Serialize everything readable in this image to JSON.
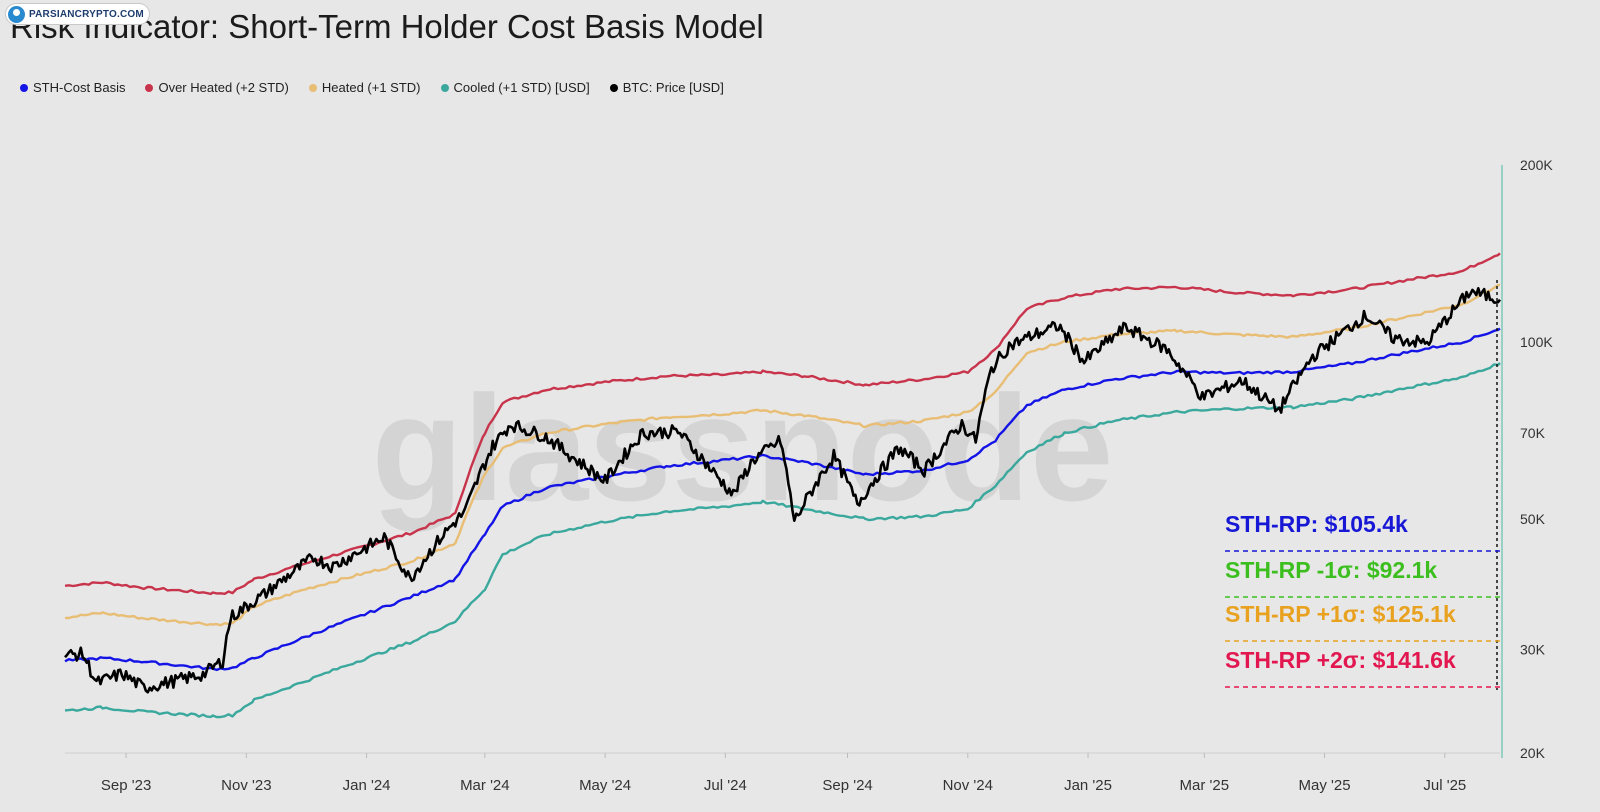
{
  "header": {
    "title": "Risk Indicator: Short-Term Holder Cost Basis Model",
    "brand": "PARSIANCRYPTO.COM",
    "watermark": "glassnode"
  },
  "colors": {
    "background": "#e7e7e7",
    "sth_cost_basis": "#1414e6",
    "over_heated": "#c8344b",
    "heated": "#e8bd74",
    "cooled": "#3aa89d",
    "price": "#000000",
    "label_blue": "#1717d6",
    "label_green": "#3cbf1e",
    "label_orange": "#e8a21f",
    "label_red": "#e3174f",
    "axis_line": "#7ec9ba"
  },
  "legend": [
    {
      "label": "STH-Cost Basis",
      "color": "#1414e6"
    },
    {
      "label": "Over Heated (+2 STD)",
      "color": "#c8344b"
    },
    {
      "label": "Heated (+1 STD)",
      "color": "#e8bd74"
    },
    {
      "label": "Cooled (+1 STD) [USD]",
      "color": "#3aa89d"
    },
    {
      "label": "BTC: Price [USD]",
      "color": "#000000"
    }
  ],
  "annotations": [
    {
      "text": "STH-RP: $105.4k",
      "color": "#1717d6"
    },
    {
      "text": "STH-RP -1σ: $92.1k",
      "color": "#3cbf1e"
    },
    {
      "text": "STH-RP +1σ: $125.1k",
      "color": "#e8a21f"
    },
    {
      "text": "STH-RP +2σ: $141.6k",
      "color": "#e3174f"
    }
  ],
  "chart_data": {
    "type": "line",
    "title": "Risk Indicator: Short-Term Holder Cost Basis Model",
    "y_scale": "log",
    "ylim": [
      20000,
      200000
    ],
    "y_ticks": [
      {
        "value": 200000,
        "label": "200K"
      },
      {
        "value": 100000,
        "label": "100K"
      },
      {
        "value": 70000,
        "label": "70K"
      },
      {
        "value": 50000,
        "label": "50K"
      },
      {
        "value": 30000,
        "label": "30K"
      },
      {
        "value": 20000,
        "label": "20K"
      }
    ],
    "xlim": [
      "2023-08-01",
      "2025-07-29"
    ],
    "x_ticks": [
      {
        "date": "2023-09-01",
        "label": "Sep '23"
      },
      {
        "date": "2023-11-01",
        "label": "Nov '23"
      },
      {
        "date": "2024-01-01",
        "label": "Jan '24"
      },
      {
        "date": "2024-03-01",
        "label": "Mar '24"
      },
      {
        "date": "2024-05-01",
        "label": "May '24"
      },
      {
        "date": "2024-07-01",
        "label": "Jul '24"
      },
      {
        "date": "2024-09-01",
        "label": "Sep '24"
      },
      {
        "date": "2024-11-01",
        "label": "Nov '24"
      },
      {
        "date": "2025-01-01",
        "label": "Jan '25"
      },
      {
        "date": "2025-03-01",
        "label": "Mar '25"
      },
      {
        "date": "2025-05-01",
        "label": "May '25"
      },
      {
        "date": "2025-07-01",
        "label": "Jul '25"
      }
    ],
    "legend_position": "top-left",
    "series": [
      {
        "name": "Over Heated (+2 STD)",
        "color": "#c8344b",
        "points": [
          [
            "2023-08-01",
            38500
          ],
          [
            "2023-08-20",
            39000
          ],
          [
            "2023-09-10",
            38200
          ],
          [
            "2023-10-15",
            37400
          ],
          [
            "2023-10-25",
            37500
          ],
          [
            "2023-11-05",
            39500
          ],
          [
            "2023-12-01",
            42000
          ],
          [
            "2024-01-01",
            45000
          ],
          [
            "2024-01-25",
            47500
          ],
          [
            "2024-02-15",
            51000
          ],
          [
            "2024-03-01",
            70000
          ],
          [
            "2024-03-10",
            79000
          ],
          [
            "2024-04-01",
            83000
          ],
          [
            "2024-05-01",
            85500
          ],
          [
            "2024-06-01",
            87500
          ],
          [
            "2024-07-01",
            88000
          ],
          [
            "2024-07-20",
            89000
          ],
          [
            "2024-08-10",
            87500
          ],
          [
            "2024-09-10",
            84500
          ],
          [
            "2024-10-10",
            86500
          ],
          [
            "2024-11-01",
            89000
          ],
          [
            "2024-11-15",
            97000
          ],
          [
            "2024-12-01",
            114000
          ],
          [
            "2024-12-20",
            119000
          ],
          [
            "2025-01-15",
            123000
          ],
          [
            "2025-02-15",
            124000
          ],
          [
            "2025-03-15",
            121500
          ],
          [
            "2025-04-15",
            120000
          ],
          [
            "2025-05-15",
            123000
          ],
          [
            "2025-06-15",
            128000
          ],
          [
            "2025-07-10",
            132000
          ],
          [
            "2025-07-29",
            141600
          ]
        ]
      },
      {
        "name": "Heated (+1 STD)",
        "color": "#e8bd74",
        "points": [
          [
            "2023-08-01",
            34000
          ],
          [
            "2023-08-20",
            34600
          ],
          [
            "2023-09-10",
            33900
          ],
          [
            "2023-10-15",
            33100
          ],
          [
            "2023-10-25",
            33200
          ],
          [
            "2023-11-05",
            35500
          ],
          [
            "2023-12-01",
            38000
          ],
          [
            "2024-01-01",
            40500
          ],
          [
            "2024-01-25",
            42500
          ],
          [
            "2024-02-15",
            45500
          ],
          [
            "2024-03-01",
            59500
          ],
          [
            "2024-03-10",
            66000
          ],
          [
            "2024-04-01",
            70000
          ],
          [
            "2024-05-01",
            72500
          ],
          [
            "2024-06-01",
            74500
          ],
          [
            "2024-07-01",
            75500
          ],
          [
            "2024-07-20",
            76500
          ],
          [
            "2024-08-10",
            75000
          ],
          [
            "2024-09-10",
            72000
          ],
          [
            "2024-10-10",
            73500
          ],
          [
            "2024-11-01",
            76000
          ],
          [
            "2024-11-15",
            82000
          ],
          [
            "2024-12-01",
            96000
          ],
          [
            "2024-12-20",
            100000
          ],
          [
            "2025-01-15",
            103000
          ],
          [
            "2025-02-15",
            104500
          ],
          [
            "2025-03-15",
            103000
          ],
          [
            "2025-04-15",
            102000
          ],
          [
            "2025-05-15",
            105500
          ],
          [
            "2025-06-15",
            111000
          ],
          [
            "2025-07-10",
            116000
          ],
          [
            "2025-07-29",
            125100
          ]
        ]
      },
      {
        "name": "STH-Cost Basis",
        "color": "#1414e6",
        "points": [
          [
            "2023-08-01",
            28700
          ],
          [
            "2023-08-20",
            29000
          ],
          [
            "2023-09-10",
            28600
          ],
          [
            "2023-10-15",
            27800
          ],
          [
            "2023-10-25",
            27900
          ],
          [
            "2023-11-05",
            29000
          ],
          [
            "2023-12-01",
            31500
          ],
          [
            "2024-01-01",
            34500
          ],
          [
            "2024-01-25",
            37000
          ],
          [
            "2024-02-15",
            39500
          ],
          [
            "2024-03-01",
            47000
          ],
          [
            "2024-03-10",
            52500
          ],
          [
            "2024-04-01",
            56500
          ],
          [
            "2024-05-01",
            59000
          ],
          [
            "2024-06-01",
            61500
          ],
          [
            "2024-07-01",
            63000
          ],
          [
            "2024-07-20",
            64000
          ],
          [
            "2024-08-10",
            62500
          ],
          [
            "2024-09-10",
            59500
          ],
          [
            "2024-10-10",
            60500
          ],
          [
            "2024-11-01",
            63000
          ],
          [
            "2024-11-15",
            68000
          ],
          [
            "2024-12-01",
            78000
          ],
          [
            "2024-12-20",
            83000
          ],
          [
            "2025-01-15",
            86500
          ],
          [
            "2025-02-15",
            89000
          ],
          [
            "2025-03-15",
            88500
          ],
          [
            "2025-04-15",
            89000
          ],
          [
            "2025-05-15",
            92000
          ],
          [
            "2025-06-15",
            96500
          ],
          [
            "2025-07-10",
            100000
          ],
          [
            "2025-07-29",
            105400
          ]
        ]
      },
      {
        "name": "Cooled (+1 STD) [USD]",
        "color": "#3aa89d",
        "points": [
          [
            "2023-08-01",
            23600
          ],
          [
            "2023-08-20",
            23900
          ],
          [
            "2023-09-10",
            23500
          ],
          [
            "2023-10-15",
            23100
          ],
          [
            "2023-10-25",
            23200
          ],
          [
            "2023-11-05",
            24600
          ],
          [
            "2023-12-01",
            26500
          ],
          [
            "2024-01-01",
            29000
          ],
          [
            "2024-01-25",
            31000
          ],
          [
            "2024-02-15",
            33500
          ],
          [
            "2024-03-01",
            38000
          ],
          [
            "2024-03-10",
            43500
          ],
          [
            "2024-04-01",
            47000
          ],
          [
            "2024-05-01",
            49500
          ],
          [
            "2024-06-01",
            51500
          ],
          [
            "2024-07-01",
            52500
          ],
          [
            "2024-07-20",
            53500
          ],
          [
            "2024-08-10",
            52000
          ],
          [
            "2024-09-10",
            50000
          ],
          [
            "2024-10-10",
            50500
          ],
          [
            "2024-11-01",
            52000
          ],
          [
            "2024-11-15",
            57000
          ],
          [
            "2024-12-01",
            65000
          ],
          [
            "2024-12-20",
            70000
          ],
          [
            "2025-01-15",
            73500
          ],
          [
            "2025-02-15",
            76000
          ],
          [
            "2025-03-15",
            77000
          ],
          [
            "2025-04-15",
            77500
          ],
          [
            "2025-05-15",
            80000
          ],
          [
            "2025-06-15",
            84000
          ],
          [
            "2025-07-10",
            87000
          ],
          [
            "2025-07-29",
            92100
          ]
        ]
      },
      {
        "name": "BTC: Price [USD]",
        "color": "#000000",
        "points": [
          [
            "2023-08-01",
            29300
          ],
          [
            "2023-08-10",
            29500
          ],
          [
            "2023-08-17",
            26300
          ],
          [
            "2023-08-30",
            27300
          ],
          [
            "2023-09-10",
            25800
          ],
          [
            "2023-09-25",
            26500
          ],
          [
            "2023-10-10",
            27200
          ],
          [
            "2023-10-20",
            28700
          ],
          [
            "2023-10-24",
            34000
          ],
          [
            "2023-11-10",
            37200
          ],
          [
            "2023-12-05",
            43000
          ],
          [
            "2023-12-15",
            41500
          ],
          [
            "2024-01-10",
            46500
          ],
          [
            "2024-01-23",
            39500
          ],
          [
            "2024-02-10",
            47500
          ],
          [
            "2024-02-20",
            51500
          ],
          [
            "2024-03-05",
            66500
          ],
          [
            "2024-03-14",
            72500
          ],
          [
            "2024-04-01",
            69000
          ],
          [
            "2024-04-15",
            63500
          ],
          [
            "2024-05-01",
            58000
          ],
          [
            "2024-05-20",
            70000
          ],
          [
            "2024-06-07",
            70500
          ],
          [
            "2024-06-24",
            60500
          ],
          [
            "2024-07-05",
            55000
          ],
          [
            "2024-07-15",
            63000
          ],
          [
            "2024-07-29",
            68000
          ],
          [
            "2024-08-05",
            49500
          ],
          [
            "2024-08-25",
            64000
          ],
          [
            "2024-09-06",
            53000
          ],
          [
            "2024-09-27",
            66000
          ],
          [
            "2024-10-10",
            60500
          ],
          [
            "2024-10-29",
            72500
          ],
          [
            "2024-11-05",
            68000
          ],
          [
            "2024-11-13",
            90000
          ],
          [
            "2024-11-22",
            98500
          ],
          [
            "2024-12-05",
            103000
          ],
          [
            "2024-12-17",
            106500
          ],
          [
            "2024-12-30",
            92500
          ],
          [
            "2025-01-20",
            106000
          ],
          [
            "2025-02-10",
            97000
          ],
          [
            "2025-02-28",
            80500
          ],
          [
            "2025-03-20",
            86000
          ],
          [
            "2025-04-08",
            76500
          ],
          [
            "2025-04-25",
            94500
          ],
          [
            "2025-05-22",
            111000
          ],
          [
            "2025-06-05",
            101500
          ],
          [
            "2025-06-22",
            99500
          ],
          [
            "2025-07-14",
            122000
          ],
          [
            "2025-07-29",
            118000
          ]
        ]
      }
    ]
  }
}
